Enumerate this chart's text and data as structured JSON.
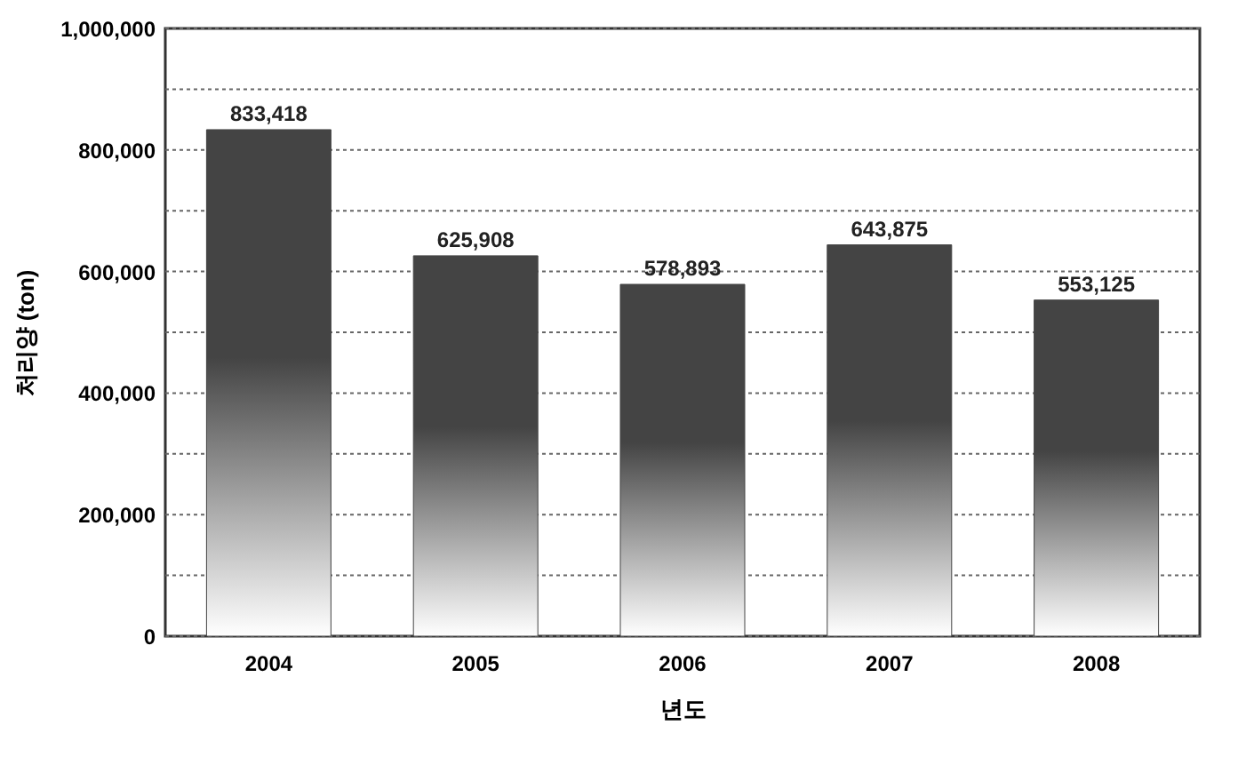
{
  "chart_data": {
    "type": "bar",
    "xlabel": "년도",
    "ylabel": "처리양 (ton)",
    "categories": [
      "2004",
      "2005",
      "2006",
      "2007",
      "2008"
    ],
    "values": [
      833418,
      625908,
      578893,
      643875,
      553125
    ],
    "value_labels": [
      "833,418",
      "625,908",
      "578,893",
      "643,875",
      "553,125"
    ],
    "color": "#444444",
    "ylim": [
      0,
      1000000
    ],
    "yticks": [
      {
        "value": 0,
        "label": "0"
      },
      {
        "value": 100000,
        "label": null
      },
      {
        "value": 200000,
        "label": "200,000"
      },
      {
        "value": 300000,
        "label": null
      },
      {
        "value": 400000,
        "label": "400,000"
      },
      {
        "value": 500000,
        "label": null
      },
      {
        "value": 600000,
        "label": "600,000"
      },
      {
        "value": 700000,
        "label": null
      },
      {
        "value": 800000,
        "label": "800,000"
      },
      {
        "value": 900000,
        "label": null
      },
      {
        "value": 1000000,
        "label": "1,000,000"
      }
    ],
    "grid": "y"
  }
}
